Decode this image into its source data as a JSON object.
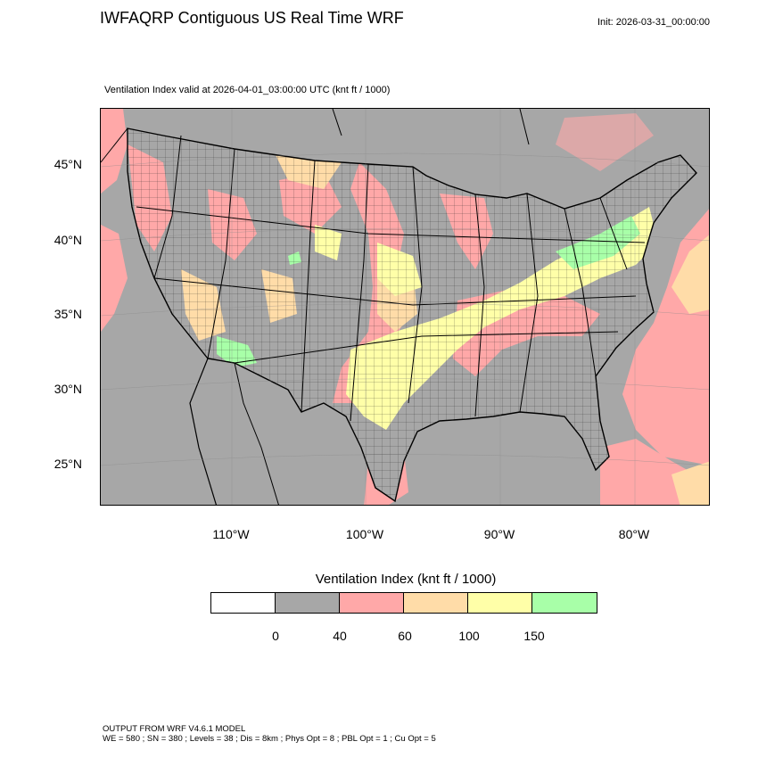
{
  "header": {
    "title": "IWFAQRP Contiguous US Real Time WRF",
    "init": "Init: 2026-03-31_00:00:00",
    "valid": "Ventilation Index valid at 2026-04-01_03:00:00 UTC   (knt ft / 1000)"
  },
  "axes": {
    "lat_labels": [
      "45°N",
      "40°N",
      "35°N",
      "30°N",
      "25°N"
    ],
    "lon_labels": [
      "110°W",
      "100°W",
      "90°W",
      "80°W"
    ]
  },
  "colorbar": {
    "title": "Ventilation Index  (knt ft / 1000)",
    "colors": [
      "#ffffff",
      "#a7a7a7",
      "#ffa8a8",
      "#ffdca8",
      "#ffffa8",
      "#a8ffa8"
    ],
    "tick_labels": [
      "0",
      "40",
      "60",
      "100",
      "150"
    ]
  },
  "legend_colors": {
    "land_low": "#a7a7a7",
    "poor": "#ffa8a8",
    "marginal": "#ffdca8",
    "fair": "#ffffa8",
    "good": "#a8ffa8",
    "ocean_pink": "#ffa8a8"
  },
  "footer": {
    "line1": "OUTPUT FROM WRF V4.6.1 MODEL",
    "line2": "WE = 580 ; SN = 380 ; Levels = 38 ; Dis = 8km ; Phys Opt = 8 ; PBL Opt = 1 ; Cu Opt = 5"
  }
}
